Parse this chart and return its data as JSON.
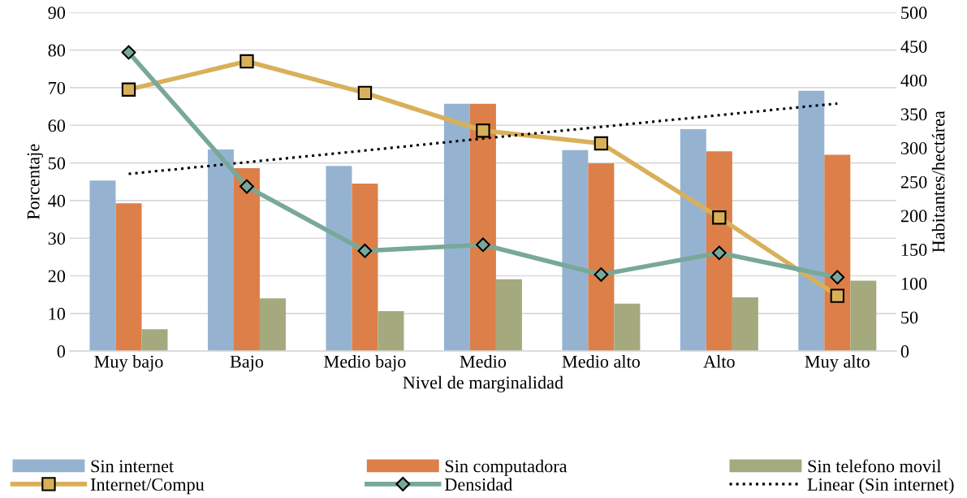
{
  "chart_data": {
    "type": "bar",
    "xlabel": "Nivel de marginalidad",
    "ylabel": "Porcentaje",
    "y2label": "Habitantes/hectárea",
    "categories": [
      "Muy bajo",
      "Bajo",
      "Medio bajo",
      "Medio",
      "Medio alto",
      "Alto",
      "Muy alto"
    ],
    "series": [
      {
        "name": "Sin internet",
        "color": "#95b3d1",
        "values": [
          45.3,
          53.6,
          49.2,
          65.7,
          53.4,
          59.0,
          69.2
        ]
      },
      {
        "name": "Sin computadora",
        "color": "#dd7f48",
        "values": [
          39.3,
          48.6,
          44.5,
          65.7,
          49.9,
          53.1,
          52.2
        ]
      },
      {
        "name": "Sin telefono movil",
        "color": "#a4aa7e",
        "values": [
          5.8,
          14.0,
          10.6,
          19.1,
          12.6,
          14.3,
          18.7
        ]
      },
      {
        "name": "Internet/Compu",
        "type": "line",
        "color": "#d9b05a",
        "marker": "square",
        "values": [
          69.5,
          77.0,
          68.6,
          58.6,
          55.2,
          35.5,
          14.7
        ]
      },
      {
        "name": "Densidad",
        "type": "line",
        "axis": "y2",
        "color": "#78a89a",
        "marker": "diamond",
        "values": [
          441,
          243,
          148,
          157,
          113,
          145,
          109
        ]
      },
      {
        "name": "Linear (Sin internet)",
        "type": "line",
        "color": "#000000",
        "line_style": "dotted",
        "marker": "none",
        "values": [
          47.1,
          50.2,
          53.3,
          56.5,
          59.6,
          62.7,
          65.8
        ]
      }
    ],
    "ylim": [
      0,
      90
    ],
    "yticks": [
      0,
      10,
      20,
      30,
      40,
      50,
      60,
      70,
      80,
      90
    ],
    "y2lim": [
      0,
      500
    ],
    "y2ticks": [
      0,
      50,
      100,
      150,
      200,
      250,
      300,
      350,
      400,
      450,
      500
    ],
    "grid": "y",
    "legend": "bottom"
  }
}
